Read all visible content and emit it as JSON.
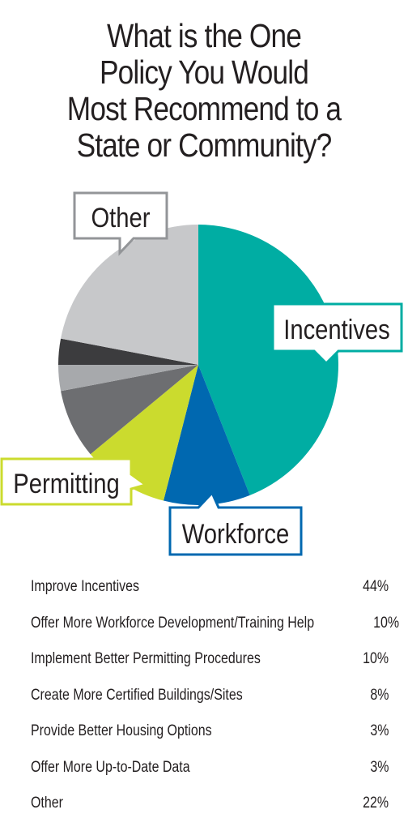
{
  "title_lines": [
    "What is the One",
    "Policy You Would",
    "Most Recommend to a",
    "State or Community?"
  ],
  "chart_data": {
    "type": "pie",
    "slices": [
      {
        "label": "Improve Incentives",
        "value": 44,
        "color": "#00ada3"
      },
      {
        "label": "Offer More Workforce Development/Training Help",
        "value": 10,
        "color": "#0068b0"
      },
      {
        "label": "Implement Better Permitting Procedures",
        "value": 10,
        "color": "#cbdb2e"
      },
      {
        "label": "Create More Certified Buildings/Sites",
        "value": 8,
        "color": "#6d6e71"
      },
      {
        "label": "Provide Better Housing Options",
        "value": 3,
        "color": "#a7a9ac"
      },
      {
        "label": "Offer More Up-to-Date Data",
        "value": 3,
        "color": "#3c3c3e"
      },
      {
        "label": "Other",
        "value": 22,
        "color": "#c7c8ca"
      }
    ],
    "callouts": {
      "incentives": "Incentives",
      "workforce": "Workforce",
      "permitting": "Permitting",
      "other": "Other"
    }
  },
  "legend_rows": [
    {
      "label": "Improve Incentives",
      "value": "44%"
    },
    {
      "label": "Offer More Workforce Development/Training Help",
      "value": "10%"
    },
    {
      "label": "Implement Better Permitting Procedures",
      "value": "10%"
    },
    {
      "label": "Create More Certified Buildings/Sites",
      "value": "8%"
    },
    {
      "label": "Provide Better Housing Options",
      "value": "3%"
    },
    {
      "label": "Offer More Up-to-Date Data",
      "value": "3%"
    },
    {
      "label": "Other",
      "value": "22%"
    }
  ]
}
